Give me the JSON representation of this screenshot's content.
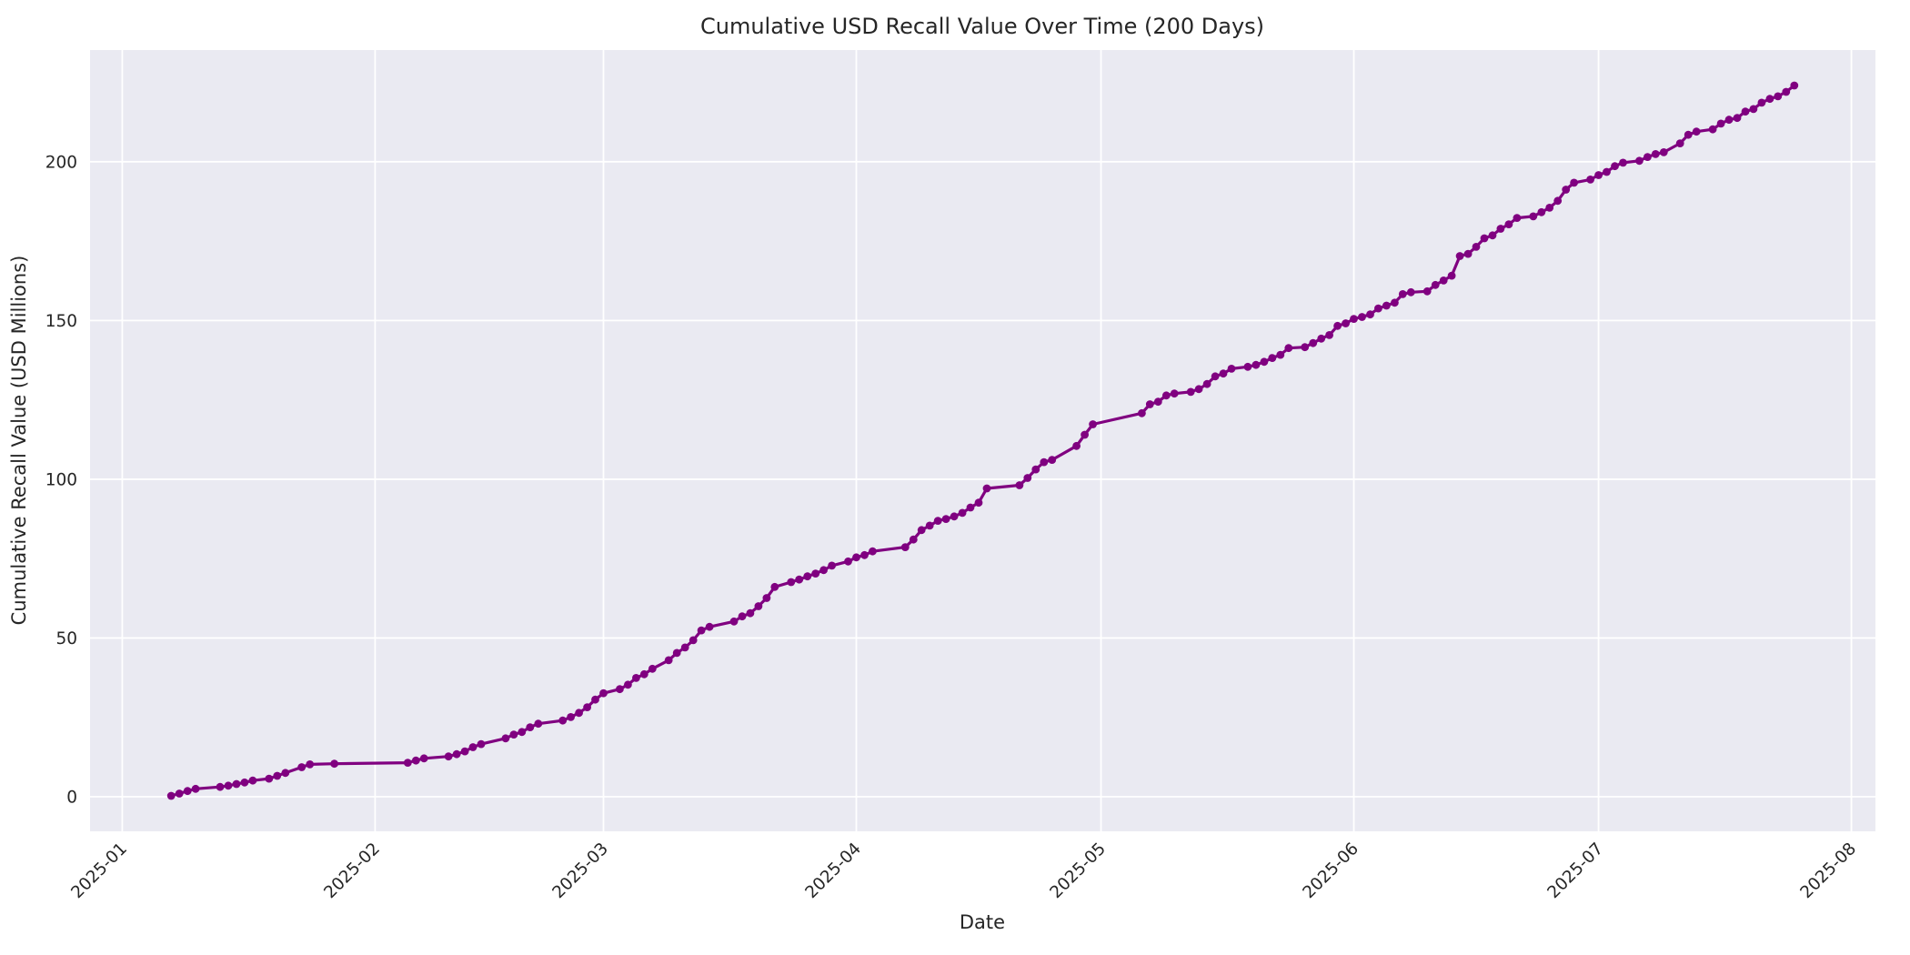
{
  "chart_data": {
    "type": "line",
    "title": "Cumulative USD Recall Value Over Time (200 Days)",
    "xlabel": "Date",
    "ylabel": "Cumulative Recall Value (USD Millions)",
    "x_tick_labels": [
      "2025-01",
      "2025-02",
      "2025-03",
      "2025-04",
      "2025-05",
      "2025-06",
      "2025-07",
      "2025-08"
    ],
    "y_ticks": [
      0,
      50,
      100,
      150,
      200
    ],
    "grid": true,
    "legend": false,
    "marker": "circle",
    "span_days": 200,
    "start_date": "2025-01-07",
    "end_date": "2025-07-25",
    "line_color": "#800080",
    "plot_bg_color": "#EAEAF2",
    "grid_color": "#FFFFFF",
    "text_color": "#262626",
    "dates": [
      "2025-01-07",
      "2025-01-08",
      "2025-01-09",
      "2025-01-10",
      "2025-01-13",
      "2025-01-14",
      "2025-01-15",
      "2025-01-16",
      "2025-01-17",
      "2025-01-19",
      "2025-01-20",
      "2025-01-21",
      "2025-01-23",
      "2025-01-24",
      "2025-01-27",
      "2025-02-05",
      "2025-02-06",
      "2025-02-07",
      "2025-02-10",
      "2025-02-11",
      "2025-02-12",
      "2025-02-13",
      "2025-02-14",
      "2025-02-17",
      "2025-02-18",
      "2025-02-19",
      "2025-02-20",
      "2025-02-21",
      "2025-02-24",
      "2025-02-25",
      "2025-02-26",
      "2025-02-27",
      "2025-02-28",
      "2025-03-01",
      "2025-03-03",
      "2025-03-04",
      "2025-03-05",
      "2025-03-06",
      "2025-03-07",
      "2025-03-09",
      "2025-03-10",
      "2025-03-11",
      "2025-03-12",
      "2025-03-13",
      "2025-03-14",
      "2025-03-17",
      "2025-03-18",
      "2025-03-19",
      "2025-03-20",
      "2025-03-21",
      "2025-03-22",
      "2025-03-24",
      "2025-03-25",
      "2025-03-26",
      "2025-03-27",
      "2025-03-28",
      "2025-03-29",
      "2025-03-31",
      "2025-04-01",
      "2025-04-02",
      "2025-04-03",
      "2025-04-07",
      "2025-04-08",
      "2025-04-09",
      "2025-04-10",
      "2025-04-11",
      "2025-04-12",
      "2025-04-13",
      "2025-04-14",
      "2025-04-15",
      "2025-04-16",
      "2025-04-17",
      "2025-04-21",
      "2025-04-22",
      "2025-04-23",
      "2025-04-24",
      "2025-04-25",
      "2025-04-28",
      "2025-04-29",
      "2025-04-30",
      "2025-05-06",
      "2025-05-07",
      "2025-05-08",
      "2025-05-09",
      "2025-05-10",
      "2025-05-12",
      "2025-05-13",
      "2025-05-14",
      "2025-05-15",
      "2025-05-16",
      "2025-05-17",
      "2025-05-19",
      "2025-05-20",
      "2025-05-21",
      "2025-05-22",
      "2025-05-23",
      "2025-05-24",
      "2025-05-26",
      "2025-05-27",
      "2025-05-28",
      "2025-05-29",
      "2025-05-30",
      "2025-05-31",
      "2025-06-01",
      "2025-06-02",
      "2025-06-03",
      "2025-06-04",
      "2025-06-05",
      "2025-06-06",
      "2025-06-07",
      "2025-06-08",
      "2025-06-10",
      "2025-06-11",
      "2025-06-12",
      "2025-06-13",
      "2025-06-14",
      "2025-06-15",
      "2025-06-16",
      "2025-06-17",
      "2025-06-18",
      "2025-06-19",
      "2025-06-20",
      "2025-06-21",
      "2025-06-23",
      "2025-06-24",
      "2025-06-25",
      "2025-06-26",
      "2025-06-27",
      "2025-06-28",
      "2025-06-30",
      "2025-07-01",
      "2025-07-02",
      "2025-07-03",
      "2025-07-04",
      "2025-07-06",
      "2025-07-07",
      "2025-07-08",
      "2025-07-09",
      "2025-07-11",
      "2025-07-12",
      "2025-07-13",
      "2025-07-15",
      "2025-07-16",
      "2025-07-17",
      "2025-07-18",
      "2025-07-19",
      "2025-07-20",
      "2025-07-21",
      "2025-07-22",
      "2025-07-23",
      "2025-07-24",
      "2025-07-25"
    ],
    "values": [
      0.3,
      1.0,
      1.8,
      2.5,
      3.1,
      3.5,
      4.0,
      4.5,
      5.1,
      5.7,
      6.6,
      7.5,
      9.3,
      10.2,
      10.4,
      10.7,
      11.4,
      12.1,
      12.7,
      13.4,
      14.3,
      15.6,
      16.6,
      18.4,
      19.6,
      20.4,
      21.9,
      23.0,
      24.0,
      25.1,
      26.4,
      28.2,
      30.6,
      32.6,
      33.9,
      35.3,
      37.4,
      38.6,
      40.3,
      43.0,
      45.3,
      47.0,
      49.3,
      52.4,
      53.5,
      55.2,
      56.8,
      57.8,
      60.0,
      62.6,
      66.1,
      67.6,
      68.4,
      69.4,
      70.3,
      71.4,
      72.8,
      74.1,
      75.4,
      76.1,
      77.3,
      78.6,
      81.0,
      84.0,
      85.4,
      86.9,
      87.5,
      88.3,
      89.4,
      91.1,
      92.6,
      97.1,
      98.1,
      100.4,
      103.1,
      105.4,
      106.1,
      110.5,
      114.0,
      117.3,
      120.8,
      123.6,
      124.4,
      126.4,
      127.0,
      127.5,
      128.4,
      130.0,
      132.4,
      133.3,
      134.8,
      135.4,
      136.0,
      137.0,
      138.2,
      139.2,
      141.3,
      141.6,
      142.9,
      144.3,
      145.4,
      148.3,
      149.1,
      150.5,
      151.1,
      151.9,
      153.8,
      154.7,
      155.6,
      158.3,
      158.9,
      159.2,
      161.2,
      162.6,
      164.1,
      170.3,
      171.0,
      173.2,
      175.9,
      176.8,
      178.9,
      180.3,
      182.3,
      182.8,
      184.1,
      185.5,
      187.7,
      191.2,
      193.4,
      194.4,
      195.8,
      196.8,
      198.6,
      199.7,
      200.3,
      201.5,
      202.4,
      203.0,
      205.8,
      208.5,
      209.5,
      210.2,
      212.0,
      213.2,
      213.8,
      215.8,
      216.6,
      218.6,
      219.8,
      220.6,
      222.0,
      224.0
    ]
  }
}
